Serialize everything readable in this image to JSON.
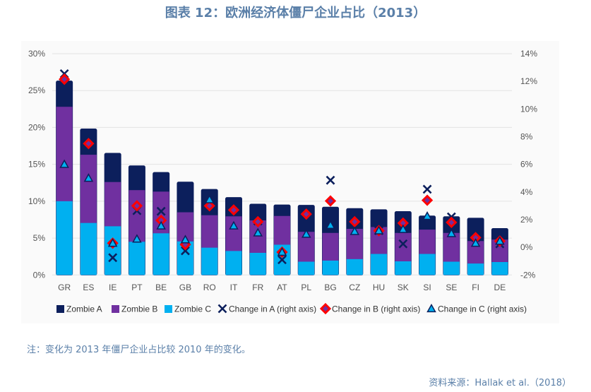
{
  "title": "图表 12：欧洲经济体僵尸企业占比（2013）",
  "note": "注：变化为 2013 年僵尸企业占比较 2010 年的变化。",
  "source": "资料来源：Hallak et al.（2018）",
  "chart_data": {
    "type": "bar",
    "stacked": true,
    "categories": [
      "GR",
      "ES",
      "IE",
      "PT",
      "BE",
      "GB",
      "RO",
      "IT",
      "FR",
      "AT",
      "PL",
      "BG",
      "CZ",
      "HU",
      "SK",
      "SI",
      "SE",
      "FI",
      "DE"
    ],
    "left_axis": {
      "ylim": [
        0,
        30
      ],
      "ticks": [
        "0%",
        "5%",
        "10%",
        "15%",
        "20%",
        "25%",
        "30%"
      ]
    },
    "right_axis": {
      "ylim": [
        -2,
        14
      ],
      "ticks": [
        "-2%",
        "0%",
        "2%",
        "4%",
        "6%",
        "8%",
        "10%",
        "12%",
        "14%"
      ]
    },
    "grid": true,
    "legend_position": "bottom",
    "colors": {
      "A": "#0c1f5c",
      "B": "#7030a0",
      "C": "#00b0f0",
      "diamond": "#ff0000"
    },
    "bar_series": [
      {
        "name": "Zombie A",
        "total": [
          26.3,
          19.8,
          16.5,
          14.8,
          13.9,
          12.6,
          11.6,
          10.5,
          9.6,
          9.5,
          9.45,
          9.2,
          9.0,
          8.85,
          8.6,
          8.0,
          7.9,
          7.7,
          6.3
        ]
      },
      {
        "name": "Zombie B",
        "total": [
          22.8,
          16.3,
          12.6,
          11.5,
          11.3,
          8.5,
          8.1,
          7.95,
          7.4,
          8.0,
          5.85,
          5.7,
          6.25,
          6.5,
          5.7,
          6.15,
          5.7,
          4.6,
          4.8
        ]
      },
      {
        "name": "Zombie C",
        "total": [
          10.0,
          7.05,
          6.6,
          4.5,
          5.65,
          4.55,
          3.7,
          3.25,
          3.0,
          4.1,
          1.8,
          1.95,
          2.15,
          2.85,
          1.85,
          2.85,
          1.8,
          1.55,
          1.75
        ]
      }
    ],
    "marker_series": [
      {
        "name": "Change in A (right axis)",
        "marker": "x",
        "values": [
          12.55,
          7.6,
          -0.75,
          2.65,
          2.6,
          -0.25,
          3.0,
          2.7,
          1.9,
          -0.9,
          2.4,
          4.85,
          1.85,
          1.2,
          0.25,
          4.2,
          2.2,
          0.7,
          0.25
        ]
      },
      {
        "name": "Change in B (right axis)",
        "marker": "diamond",
        "values": [
          12.15,
          7.5,
          0.3,
          3.0,
          1.95,
          0.2,
          3.0,
          2.7,
          1.85,
          -0.35,
          2.4,
          3.35,
          1.85,
          1.2,
          1.75,
          3.4,
          1.8,
          0.7,
          0.45
        ]
      },
      {
        "name": "Change in C (right axis)",
        "marker": "triangle",
        "values": [
          6.0,
          5.0,
          0.3,
          0.6,
          1.55,
          0.55,
          3.45,
          1.55,
          1.05,
          -0.35,
          0.95,
          1.6,
          1.15,
          1.2,
          1.3,
          2.25,
          1.0,
          0.3,
          0.45
        ]
      }
    ]
  }
}
